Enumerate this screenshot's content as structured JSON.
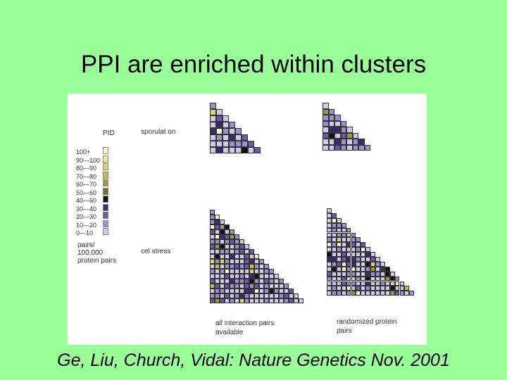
{
  "slide": {
    "title": "PPI are enriched within clusters",
    "caption": "Ge, Liu, Church, Vidal: Nature Genetics Nov. 2001"
  },
  "figure": {
    "legend_title": "PID",
    "legend_rows": [
      "100+",
      "90—100",
      "80—90",
      "70—80",
      "60—70",
      "50—60",
      "40—50",
      "30—40",
      "20—30",
      "10—20",
      "0—10"
    ],
    "legend_colors": [
      "#fbfbd6",
      "#ecec9a",
      "#d8d860",
      "#c0c040",
      "#9a9a3a",
      "#70703a",
      "#101010",
      "#3b2a6e",
      "#6a5aa8",
      "#9a90cc",
      "#cfcaea"
    ],
    "unit_label": "pairs/ 100,000 protein pairs",
    "row_labels": {
      "sporulation": "sporulat on",
      "cell_stress": "cel stress"
    },
    "col_labels": {
      "all": "all interaction pairs available",
      "randomized": "randomized protein pairs"
    }
  }
}
